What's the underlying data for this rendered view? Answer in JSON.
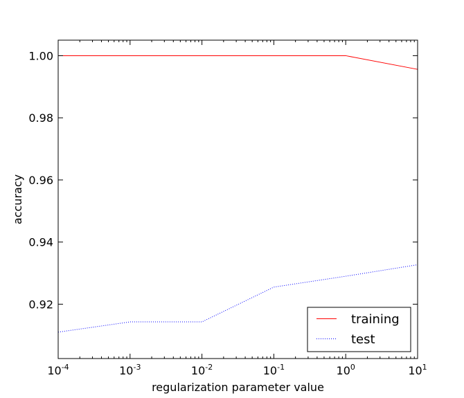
{
  "chart_data": {
    "type": "line",
    "xscale": "log",
    "x": [
      0.0001,
      0.001,
      0.01,
      0.1,
      1,
      10
    ],
    "series": [
      {
        "name": "training",
        "color": "#ff0000",
        "style": "solid",
        "values": [
          1.0,
          1.0,
          1.0,
          1.0,
          1.0,
          0.9956
        ]
      },
      {
        "name": "test",
        "color": "#0000ff",
        "style": "dotted",
        "values": [
          0.911,
          0.9143,
          0.9143,
          0.9255,
          0.929,
          0.9327
        ]
      }
    ],
    "xlim": [
      0.0001,
      10
    ],
    "ylim": [
      0.9025,
      1.005
    ],
    "xticks": [
      {
        "value": 0.0001,
        "base": "10",
        "exp": "-4"
      },
      {
        "value": 0.001,
        "base": "10",
        "exp": "-3"
      },
      {
        "value": 0.01,
        "base": "10",
        "exp": "-2"
      },
      {
        "value": 0.1,
        "base": "10",
        "exp": "-1"
      },
      {
        "value": 1,
        "base": "10",
        "exp": "0"
      },
      {
        "value": 10,
        "base": "10",
        "exp": "1"
      }
    ],
    "yticks": [
      {
        "value": 0.92,
        "label": "0.92"
      },
      {
        "value": 0.94,
        "label": "0.94"
      },
      {
        "value": 0.96,
        "label": "0.96"
      },
      {
        "value": 0.98,
        "label": "0.98"
      },
      {
        "value": 1.0,
        "label": "1.00"
      }
    ],
    "xlabel": "regularization parameter value",
    "ylabel": "accuracy",
    "legend_position": "lower-right",
    "grid": false
  }
}
